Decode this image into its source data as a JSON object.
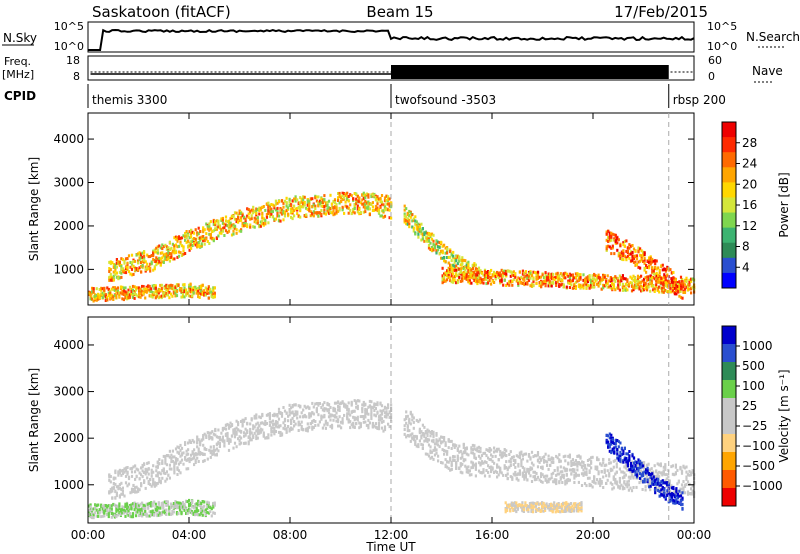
{
  "header": {
    "station": "Saskatoon (fitACF)",
    "beam": "Beam 15",
    "date": "17/Feb/2015"
  },
  "panels": {
    "nsky_label": "N.Sky",
    "nsearch_label": "N.Search",
    "nsky_ticks": [
      "10^5",
      "10^0"
    ],
    "nsky_right_ticks": [
      "10^5",
      "10^0"
    ],
    "freq_label_1": "Freq.",
    "freq_label_2": "[MHz]",
    "freq_ticks": [
      "18",
      "8"
    ],
    "nave_ticks": [
      "60",
      "0"
    ],
    "nave_label": "Nave",
    "cpid_label": "CPID",
    "cpid_segments": [
      {
        "label": "themis 3300",
        "start_hour": 0.0
      },
      {
        "label": "twofsound -3503",
        "start_hour": 12.0
      },
      {
        "label": "rbsp 200",
        "start_hour": 23.0
      }
    ]
  },
  "chart_data": [
    {
      "type": "heatmap",
      "title": "",
      "xlabel": "Time UT",
      "ylabel": "Slant Range [km]",
      "colorbar_label": "Power [dB]",
      "x_ticks": [
        "00:00",
        "04:00",
        "08:00",
        "12:00",
        "16:00",
        "20:00",
        "00:00"
      ],
      "xlim_hours": [
        0,
        24
      ],
      "ylim": [
        180,
        4600
      ],
      "y_ticks": [
        1000,
        2000,
        3000,
        4000
      ],
      "colorbar_ticks": [
        "28",
        "24",
        "20",
        "16",
        "12",
        "8",
        "4"
      ],
      "colorbar_range": [
        0,
        32
      ],
      "colorbar_colors": [
        "#0000ff",
        "#2a4fd0",
        "#2e8b57",
        "#3cb371",
        "#7fd64f",
        "#d4e63a",
        "#ffd700",
        "#ffa500",
        "#ff6a00",
        "#ff2a00",
        "#ee0000"
      ],
      "vlines_hours": [
        12.0,
        23.0
      ],
      "features": [
        {
          "name": "arc",
          "type": "range_track",
          "t": [
            0.8,
            2.5,
            4,
            6,
            8,
            10,
            11,
            12
          ],
          "range": [
            1000,
            1250,
            1700,
            2150,
            2450,
            2550,
            2550,
            2450
          ],
          "width": 500,
          "value": 20
        },
        {
          "name": "decline",
          "type": "range_track",
          "t": [
            12.5,
            13.5,
            14.5,
            15.5
          ],
          "range": [
            2300,
            1700,
            1200,
            900
          ],
          "width": 400,
          "value": 18
        },
        {
          "name": "near",
          "type": "range_track",
          "t": [
            0,
            2,
            4,
            5
          ],
          "range": [
            450,
            500,
            550,
            500
          ],
          "width": 300,
          "value": 20
        },
        {
          "name": "late",
          "type": "range_track",
          "t": [
            14,
            16,
            18,
            20,
            22,
            24
          ],
          "range": [
            900,
            850,
            800,
            750,
            700,
            650
          ],
          "width": 350,
          "value": 22
        },
        {
          "name": "sporadic",
          "type": "range_track",
          "t": [
            20.5,
            22,
            23.5
          ],
          "range": [
            1700,
            1200,
            600
          ],
          "width": 500,
          "value": 24
        }
      ]
    },
    {
      "type": "heatmap",
      "title": "",
      "xlabel": "Time UT",
      "ylabel": "Slant Range [km]",
      "colorbar_label": "Velocity [m s⁻¹]",
      "x_ticks": [
        "00:00",
        "04:00",
        "08:00",
        "12:00",
        "16:00",
        "20:00",
        "00:00"
      ],
      "xlim_hours": [
        0,
        24
      ],
      "ylim": [
        180,
        4600
      ],
      "y_ticks": [
        1000,
        2000,
        3000,
        4000
      ],
      "colorbar_ticks": [
        "1000",
        "500",
        "100",
        "25",
        "−25",
        "−100",
        "−500",
        "−1000"
      ],
      "colorbar_range": [
        -1000,
        1000
      ],
      "colorbar_colors": [
        "#ee0000",
        "#ff5a00",
        "#ffa500",
        "#ffd27f",
        "#c8c8c8",
        "#c8c8c8",
        "#6ad04a",
        "#2e8b57",
        "#2a4fd0",
        "#0000cc"
      ],
      "vlines_hours": [
        12.0,
        23.0
      ],
      "features": [
        {
          "name": "arc",
          "type": "range_track",
          "t": [
            0.8,
            2.5,
            4,
            6,
            8,
            10,
            11,
            12
          ],
          "range": [
            1000,
            1250,
            1700,
            2150,
            2450,
            2550,
            2550,
            2450
          ],
          "width": 600,
          "value": 0
        },
        {
          "name": "decline",
          "type": "range_track",
          "t": [
            12.5,
            13.5,
            14.5,
            16,
            18,
            20,
            22,
            24
          ],
          "range": [
            2400,
            1900,
            1600,
            1500,
            1400,
            1300,
            1200,
            1100
          ],
          "width": 650,
          "value": 0
        },
        {
          "name": "near",
          "type": "range_track",
          "t": [
            0,
            2,
            4,
            5
          ],
          "range": [
            450,
            500,
            550,
            500
          ],
          "width": 300,
          "value": 200
        },
        {
          "name": "orange",
          "type": "range_track",
          "t": [
            16.5,
            18,
            19.5
          ],
          "range": [
            550,
            550,
            550
          ],
          "width": 200,
          "value": -200
        },
        {
          "name": "blue",
          "type": "range_track",
          "t": [
            20.5,
            21.5,
            22.5,
            23.5
          ],
          "range": [
            2000,
            1500,
            1000,
            700
          ],
          "width": 400,
          "value": 800
        }
      ]
    }
  ]
}
